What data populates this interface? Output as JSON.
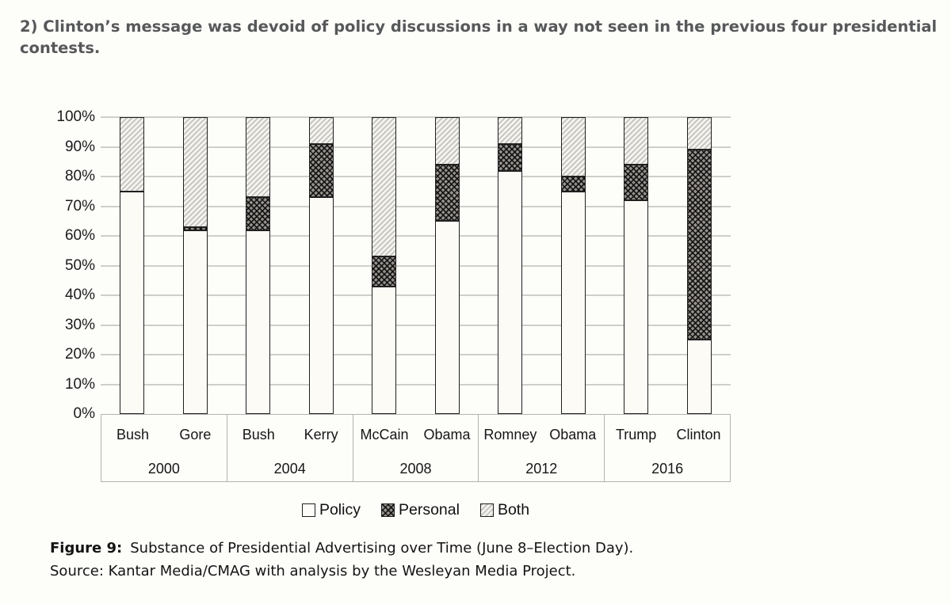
{
  "header": {
    "title": "2) Clinton’s message was devoid of policy discussions in a way not seen in the previous four presidential contests."
  },
  "chart_data": {
    "type": "bar",
    "stacked": true,
    "orientation": "vertical",
    "unit": "%",
    "ylim": [
      0,
      100
    ],
    "grid": "horizontal",
    "yticks": [
      "0%",
      "10%",
      "20%",
      "30%",
      "40%",
      "50%",
      "60%",
      "70%",
      "80%",
      "90%",
      "100%"
    ],
    "series_names": [
      "Policy",
      "Personal",
      "Both"
    ],
    "groups": [
      {
        "year": "2000",
        "candidates": [
          "Bush",
          "Gore"
        ]
      },
      {
        "year": "2004",
        "candidates": [
          "Bush",
          "Kerry"
        ]
      },
      {
        "year": "2008",
        "candidates": [
          "McCain",
          "Obama"
        ]
      },
      {
        "year": "2012",
        "candidates": [
          "Romney",
          "Obama"
        ]
      },
      {
        "year": "2016",
        "candidates": [
          "Trump",
          "Clinton"
        ]
      }
    ],
    "bars": [
      {
        "candidate": "Bush",
        "year": "2000",
        "policy": 75,
        "personal": 0,
        "both": 25
      },
      {
        "candidate": "Gore",
        "year": "2000",
        "policy": 62,
        "personal": 1,
        "both": 37
      },
      {
        "candidate": "Bush",
        "year": "2004",
        "policy": 62,
        "personal": 11,
        "both": 27
      },
      {
        "candidate": "Kerry",
        "year": "2004",
        "policy": 73,
        "personal": 18,
        "both": 9
      },
      {
        "candidate": "McCain",
        "year": "2008",
        "policy": 43,
        "personal": 10,
        "both": 47
      },
      {
        "candidate": "Obama",
        "year": "2008",
        "policy": 65,
        "personal": 19,
        "both": 16
      },
      {
        "candidate": "Romney",
        "year": "2012",
        "policy": 82,
        "personal": 9,
        "both": 9
      },
      {
        "candidate": "Obama",
        "year": "2012",
        "policy": 75,
        "personal": 5,
        "both": 20
      },
      {
        "candidate": "Trump",
        "year": "2016",
        "policy": 72,
        "personal": 12,
        "both": 16
      },
      {
        "candidate": "Clinton",
        "year": "2016",
        "policy": 25,
        "personal": 64,
        "both": 11
      }
    ],
    "legend_position": "bottom"
  },
  "legend": {
    "policy": "Policy",
    "personal": "Personal",
    "both": "Both"
  },
  "caption": {
    "figure_label": "Figure 9:",
    "figure_text": "Substance of Presidential Advertising over Time (June 8–Election Day).",
    "source_text": "Source: Kantar Media/CMAG with analysis by the Wesleyan Media Project."
  },
  "colors": {
    "heading_text": "#57585a",
    "policy_fill": "#fcfbf5",
    "personal_fill": "#5a5a57",
    "both_fill": "#e4e3de",
    "gridline": "#cfcec9",
    "bar_border": "#1f1f1f",
    "axis_box_border": "#b4b3af"
  }
}
